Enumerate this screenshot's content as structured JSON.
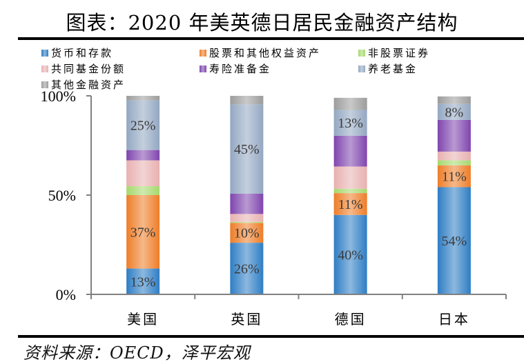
{
  "header": {
    "title": "图表：2020 年美英德日居民金融资产结构"
  },
  "footer": {
    "source": "资料来源：OECD，泽平宏观"
  },
  "chart_data": {
    "type": "bar",
    "stacked": true,
    "percent": true,
    "title": "2020 年美英德日居民金融资产结构",
    "xlabel": "",
    "ylabel": "",
    "ylim": [
      0,
      100
    ],
    "yticks": [
      0,
      50,
      100
    ],
    "ytick_labels": [
      "0%",
      "50%",
      "100%"
    ],
    "grid": false,
    "legend_position": "top",
    "categories": [
      "美国",
      "英国",
      "德国",
      "日本"
    ],
    "series": [
      {
        "name": "货币和存款",
        "color": "#2e7dc4",
        "values": [
          13,
          26,
          40,
          54
        ],
        "labels": [
          "13%",
          "26%",
          "40%",
          "54%"
        ]
      },
      {
        "name": "股票和其他权益资产",
        "color": "#ee7d28",
        "values": [
          37,
          10,
          11,
          11
        ],
        "labels": [
          "37%",
          "10%",
          "11%",
          "11%"
        ]
      },
      {
        "name": "非股票证券",
        "color": "#a6d86c",
        "values": [
          4.5,
          0.5,
          2.2,
          2.5
        ],
        "labels": [
          "",
          "",
          "",
          ""
        ]
      },
      {
        "name": "共同基金份额",
        "color": "#e8b0b0",
        "values": [
          13,
          4,
          11.2,
          4.4
        ],
        "labels": [
          "",
          "",
          "",
          ""
        ]
      },
      {
        "name": "寿险准备金",
        "color": "#7f45ae",
        "values": [
          5.2,
          10.2,
          15.5,
          16
        ],
        "labels": [
          "",
          "",
          "",
          ""
        ]
      },
      {
        "name": "养老基金",
        "color": "#93a7c2",
        "values": [
          25,
          45,
          13,
          8
        ],
        "labels": [
          "25%",
          "45%",
          "13%",
          "8%"
        ]
      },
      {
        "name": "其他金融资产",
        "color": "#9c9c9c",
        "values": [
          2.3,
          4.3,
          6.1,
          3.8
        ],
        "labels": [
          "",
          "",
          "",
          ""
        ]
      }
    ]
  }
}
